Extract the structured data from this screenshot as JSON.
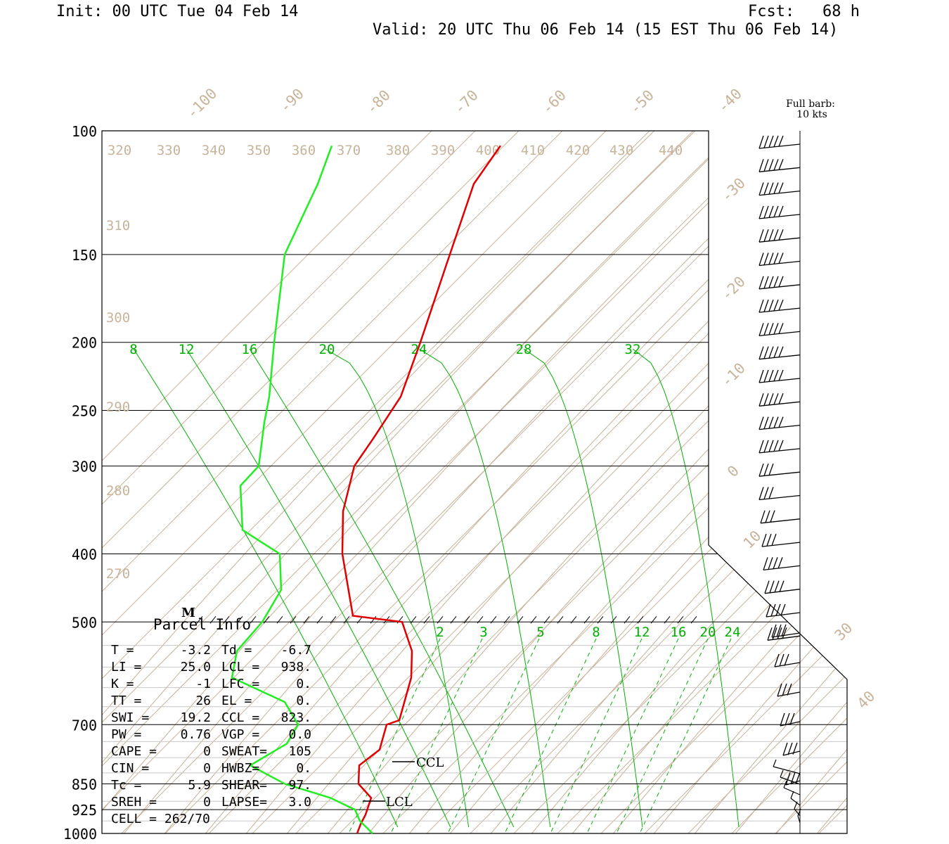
{
  "header": {
    "init": "Init: 00 UTC Tue 04 Feb 14",
    "fcst": "Fcst:   68 h",
    "valid": "Valid: 20 UTC Thu 06 Feb 14 (15 EST Thu 06 Feb 14)"
  },
  "barb_legend": {
    "line1": "Full barb:",
    "line2": "10 kts"
  },
  "parcel": {
    "title": "Parcel Info",
    "rows": [
      {
        "k1": "T  =",
        "v1": "-3.2",
        "k2": "Td =",
        "v2": "-6.7"
      },
      {
        "k1": "LI =",
        "v1": "25.0",
        "k2": "LCL =",
        "v2": "938."
      },
      {
        "k1": "K  =",
        "v1": "-1",
        "k2": "LFC =",
        "v2": "0."
      },
      {
        "k1": "TT =",
        "v1": "26",
        "k2": "EL  =",
        "v2": "0."
      },
      {
        "k1": "SWI =",
        "v1": "19.2",
        "k2": "CCL =",
        "v2": "823."
      },
      {
        "k1": "PW  =",
        "v1": "0.76",
        "k2": "VGP =",
        "v2": "0.0"
      },
      {
        "k1": "CAPE =",
        "v1": "0",
        "k2": "SWEAT=",
        "v2": "105"
      },
      {
        "k1": "CIN  =",
        "v1": "0",
        "k2": "HWBZ=",
        "v2": "0."
      },
      {
        "k1": "Tc =",
        "v1": "5.9",
        "k2": "SHEAR=",
        "v2": "97."
      },
      {
        "k1": "SREH =",
        "v1": "0",
        "k2": "LAPSE=",
        "v2": "3.0"
      }
    ],
    "cell": "CELL = 262/70"
  },
  "level_labels": {
    "ccl": "CCL",
    "lcl": "LCL",
    "m": "M"
  },
  "colors": {
    "temperature": "#e00000",
    "dewpoint": "#22ee22",
    "isotherm": "#c8b49b",
    "mixing": "#00b000",
    "grid": "#000000"
  },
  "chart_data": {
    "type": "line",
    "subtype": "skew-T log-P sounding",
    "pressure_levels": [
      100,
      150,
      200,
      250,
      300,
      400,
      500,
      700,
      850,
      925,
      1000
    ],
    "pressure_range": [
      100,
      1000
    ],
    "isotherm_labels": [
      "-100",
      "-90",
      "-80",
      "-70",
      "-60",
      "-50",
      "-40",
      "-30",
      "-20",
      "-10",
      "0",
      "10",
      "30",
      "40"
    ],
    "theta_labels": [
      "320",
      "330",
      "340",
      "350",
      "360",
      "370",
      "380",
      "390",
      "400",
      "410",
      "420",
      "430",
      "440",
      "310",
      "300",
      "290",
      "280",
      "270"
    ],
    "mixing_ratio_labels_upper": [
      "8",
      "12",
      "16",
      "20",
      "24",
      "28",
      "32"
    ],
    "mixing_ratio_labels_lower": [
      "2",
      "3",
      "5",
      "8",
      "12",
      "16",
      "20",
      "24"
    ],
    "series": [
      {
        "name": "temperature",
        "color": "#e00000",
        "points": [
          [
            105,
            100
          ],
          [
            119,
            101
          ],
          [
            154,
            102
          ],
          [
            200,
            96
          ],
          [
            239,
            94
          ],
          [
            275,
            93
          ],
          [
            300,
            91
          ],
          [
            348,
            88
          ],
          [
            400,
            87
          ],
          [
            490,
            84
          ],
          [
            500,
            83
          ],
          [
            550,
            83
          ],
          [
            600,
            82
          ],
          [
            690,
            82
          ],
          [
            700,
            81
          ],
          [
            760,
            80
          ],
          [
            800,
            79
          ],
          [
            850,
            79
          ],
          [
            890,
            78
          ],
          [
            940,
            77
          ],
          [
            970,
            79
          ],
          [
            1000,
            80
          ]
        ]
      },
      {
        "name": "dewpoint",
        "color": "#22ee22",
        "points": [
          [
            105,
            66
          ],
          [
            119,
            68
          ],
          [
            150,
            72
          ],
          [
            200,
            72
          ],
          [
            239,
            71
          ],
          [
            260,
            72
          ],
          [
            300,
            80
          ],
          [
            320,
            80
          ],
          [
            370,
            72
          ],
          [
            400,
            68
          ],
          [
            450,
            74
          ],
          [
            500,
            73
          ],
          [
            550,
            66
          ],
          [
            600,
            64
          ],
          [
            650,
            69
          ],
          [
            700,
            77
          ],
          [
            745,
            76
          ],
          [
            800,
            77
          ],
          [
            850,
            78
          ],
          [
            890,
            75
          ],
          [
            925,
            73
          ],
          [
            960,
            74
          ],
          [
            1000,
            74
          ]
        ]
      }
    ],
    "wind_barbs_count": 28,
    "annotations": [
      "CCL",
      "LCL",
      "M"
    ]
  }
}
